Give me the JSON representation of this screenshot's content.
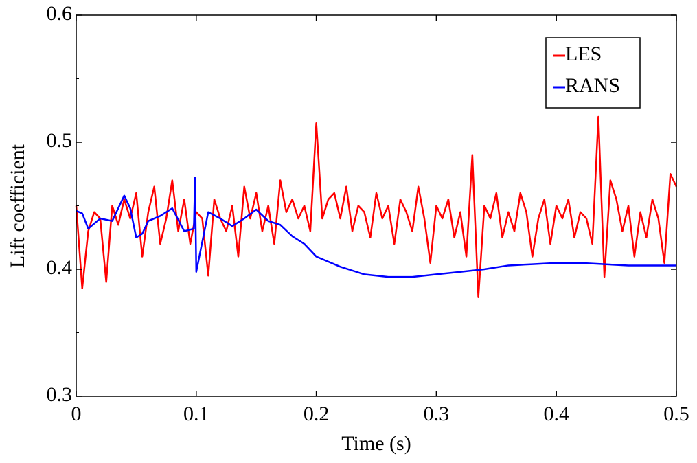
{
  "chart_data": {
    "type": "line",
    "xlabel": "Time (s)",
    "ylabel": "Lift coefficient",
    "xlim": [
      0,
      0.5
    ],
    "xticks": [
      0,
      0.1,
      0.2,
      0.3,
      0.4,
      0.5
    ],
    "ylim": [
      0.3,
      0.6
    ],
    "yticks": [
      0.3,
      0.4,
      0.5,
      0.6
    ],
    "grid": false,
    "legend": "upper right",
    "series": [
      {
        "name": "LES",
        "color": "#ff0000",
        "x": [
          0,
          0.005,
          0.01,
          0.015,
          0.02,
          0.025,
          0.03,
          0.035,
          0.04,
          0.045,
          0.05,
          0.055,
          0.06,
          0.065,
          0.07,
          0.075,
          0.08,
          0.085,
          0.09,
          0.095,
          0.1,
          0.105,
          0.11,
          0.115,
          0.12,
          0.125,
          0.13,
          0.135,
          0.14,
          0.145,
          0.15,
          0.155,
          0.16,
          0.165,
          0.17,
          0.175,
          0.18,
          0.185,
          0.19,
          0.195,
          0.2,
          0.205,
          0.21,
          0.215,
          0.22,
          0.225,
          0.23,
          0.235,
          0.24,
          0.245,
          0.25,
          0.255,
          0.26,
          0.265,
          0.27,
          0.275,
          0.28,
          0.285,
          0.29,
          0.295,
          0.3,
          0.305,
          0.31,
          0.315,
          0.32,
          0.325,
          0.33,
          0.335,
          0.34,
          0.345,
          0.35,
          0.355,
          0.36,
          0.365,
          0.37,
          0.375,
          0.38,
          0.385,
          0.39,
          0.395,
          0.4,
          0.405,
          0.41,
          0.415,
          0.42,
          0.425,
          0.43,
          0.435,
          0.44,
          0.445,
          0.45,
          0.455,
          0.46,
          0.465,
          0.47,
          0.475,
          0.48,
          0.485,
          0.49,
          0.495,
          0.5
        ],
        "values": [
          0.45,
          0.385,
          0.43,
          0.445,
          0.44,
          0.39,
          0.45,
          0.435,
          0.455,
          0.44,
          0.46,
          0.41,
          0.445,
          0.465,
          0.42,
          0.44,
          0.47,
          0.43,
          0.455,
          0.42,
          0.445,
          0.44,
          0.395,
          0.455,
          0.44,
          0.43,
          0.45,
          0.41,
          0.465,
          0.44,
          0.46,
          0.43,
          0.45,
          0.42,
          0.47,
          0.445,
          0.455,
          0.44,
          0.45,
          0.43,
          0.515,
          0.44,
          0.455,
          0.46,
          0.44,
          0.465,
          0.43,
          0.45,
          0.445,
          0.425,
          0.46,
          0.44,
          0.45,
          0.42,
          0.455,
          0.445,
          0.43,
          0.465,
          0.44,
          0.405,
          0.45,
          0.44,
          0.455,
          0.425,
          0.445,
          0.41,
          0.49,
          0.378,
          0.45,
          0.44,
          0.46,
          0.425,
          0.445,
          0.43,
          0.46,
          0.445,
          0.41,
          0.44,
          0.455,
          0.42,
          0.45,
          0.44,
          0.455,
          0.425,
          0.445,
          0.44,
          0.42,
          0.52,
          0.394,
          0.47,
          0.455,
          0.43,
          0.45,
          0.41,
          0.445,
          0.425,
          0.455,
          0.44,
          0.405,
          0.475,
          0.465
        ]
      },
      {
        "name": "RANS",
        "color": "#0000ff",
        "x": [
          0,
          0.005,
          0.01,
          0.015,
          0.02,
          0.03,
          0.04,
          0.045,
          0.05,
          0.055,
          0.06,
          0.07,
          0.08,
          0.09,
          0.098,
          0.099,
          0.1,
          0.11,
          0.12,
          0.13,
          0.14,
          0.15,
          0.16,
          0.17,
          0.18,
          0.19,
          0.2,
          0.22,
          0.24,
          0.26,
          0.28,
          0.3,
          0.32,
          0.34,
          0.36,
          0.38,
          0.4,
          0.42,
          0.44,
          0.46,
          0.48,
          0.5
        ],
        "values": [
          0.446,
          0.444,
          0.432,
          0.436,
          0.44,
          0.438,
          0.458,
          0.448,
          0.425,
          0.428,
          0.438,
          0.442,
          0.448,
          0.43,
          0.432,
          0.472,
          0.398,
          0.445,
          0.44,
          0.434,
          0.44,
          0.447,
          0.438,
          0.435,
          0.426,
          0.42,
          0.41,
          0.402,
          0.396,
          0.394,
          0.394,
          0.396,
          0.398,
          0.4,
          0.403,
          0.404,
          0.405,
          0.405,
          0.404,
          0.403,
          0.403,
          0.403
        ]
      }
    ]
  }
}
